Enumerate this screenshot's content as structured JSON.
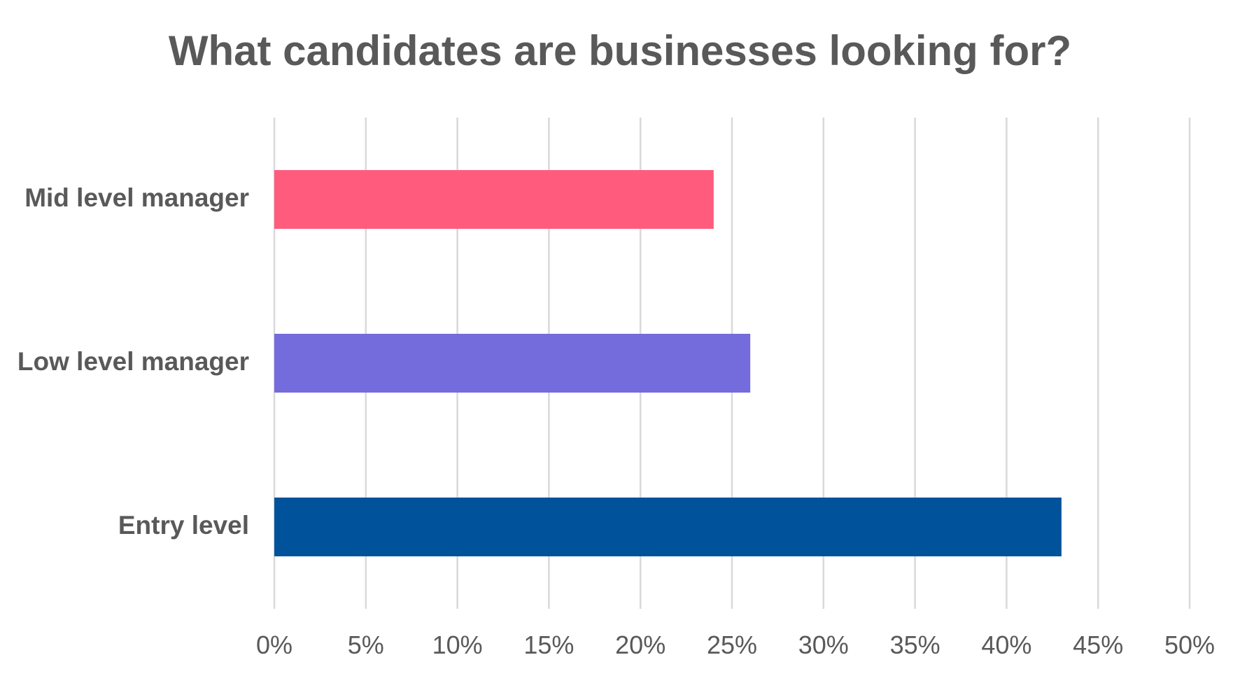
{
  "chart_data": {
    "type": "bar",
    "orientation": "horizontal",
    "title": "What candidates are businesses looking for?",
    "xlabel": "",
    "ylabel": "",
    "categories": [
      "Mid level manager",
      "Low level manager",
      "Entry level"
    ],
    "values": [
      24,
      26,
      43
    ],
    "colors": [
      "#FF5C7D",
      "#746BDD",
      "#00529B"
    ],
    "xlim": [
      0,
      50
    ],
    "x_ticks": [
      0,
      5,
      10,
      15,
      20,
      25,
      30,
      35,
      40,
      45,
      50
    ],
    "x_tick_labels": [
      "0%",
      "5%",
      "10%",
      "15%",
      "20%",
      "25%",
      "30%",
      "35%",
      "40%",
      "45%",
      "50%"
    ],
    "grid": "vertical",
    "grid_color": "#D9D9D9",
    "legend": "none"
  }
}
